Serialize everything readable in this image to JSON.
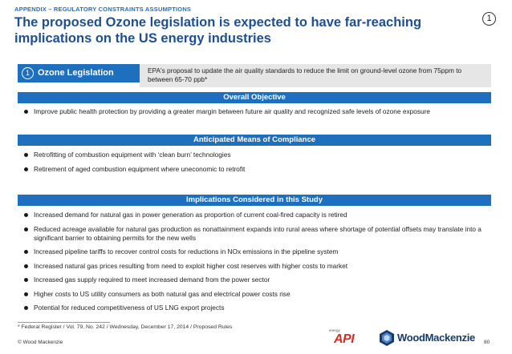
{
  "header": {
    "appendix_label": "APPENDIX – REGULATORY CONSTRAINTS ASSUMPTIONS",
    "title": "The proposed Ozone legislation is expected to have far-reaching implications on the US energy industries",
    "badge": "1"
  },
  "legislation": {
    "number": "1",
    "label": "Ozone Legislation",
    "description": "EPA's proposal to update the air quality standards to reduce the limit on ground-level ozone from 75ppm to between 65-70 ppb*"
  },
  "sections": [
    {
      "heading": "Overall Objective",
      "bullets": [
        "Improve public health protection by providing a greater margin between future air quality and recognized safe levels of ozone exposure"
      ]
    },
    {
      "heading": "Anticipated Means of Compliance",
      "bullets": [
        "Retrofitting of combustion equipment with ‘clean burn’ technologies",
        "Retirement of aged combustion equipment where uneconomic to retrofit"
      ]
    },
    {
      "heading": "Implications Considered in this Study",
      "bullets": [
        "Increased demand for natural gas in power generation as proportion of current coal-fired capacity is retired",
        "Reduced acreage available for natural gas production as nonattainment expands into rural areas where shortage of potential offsets may translate into a significant barrier to obtaining permits for the new wells",
        "Increased pipeline tariffs to recover control costs for reductions in NOx emissions in the pipeline system",
        "Increased natural gas prices resulting from need to exploit higher cost reserves with higher costs to market",
        "Increased gas supply required to meet increased demand from the power sector",
        "Higher costs to US utility consumers as both natural gas and electrical power costs rise",
        "Potential for reduced competitiveness of US LNG export projects"
      ]
    }
  ],
  "footer": {
    "footnote": "* Federal Register / Vol. 79, No. 242 / Wednesday, December 17, 2014 / Proposed Rules",
    "copyright": "© Wood Mackenzie",
    "api_super": "energy",
    "api_logo": "API",
    "wm_logo": "WoodMackenzie",
    "page_number": "80"
  },
  "colors": {
    "brand_blue": "#1f6fbf",
    "title_blue": "#1f4f8f",
    "api_red": "#d42e26",
    "wm_navy": "#1a3a66"
  }
}
